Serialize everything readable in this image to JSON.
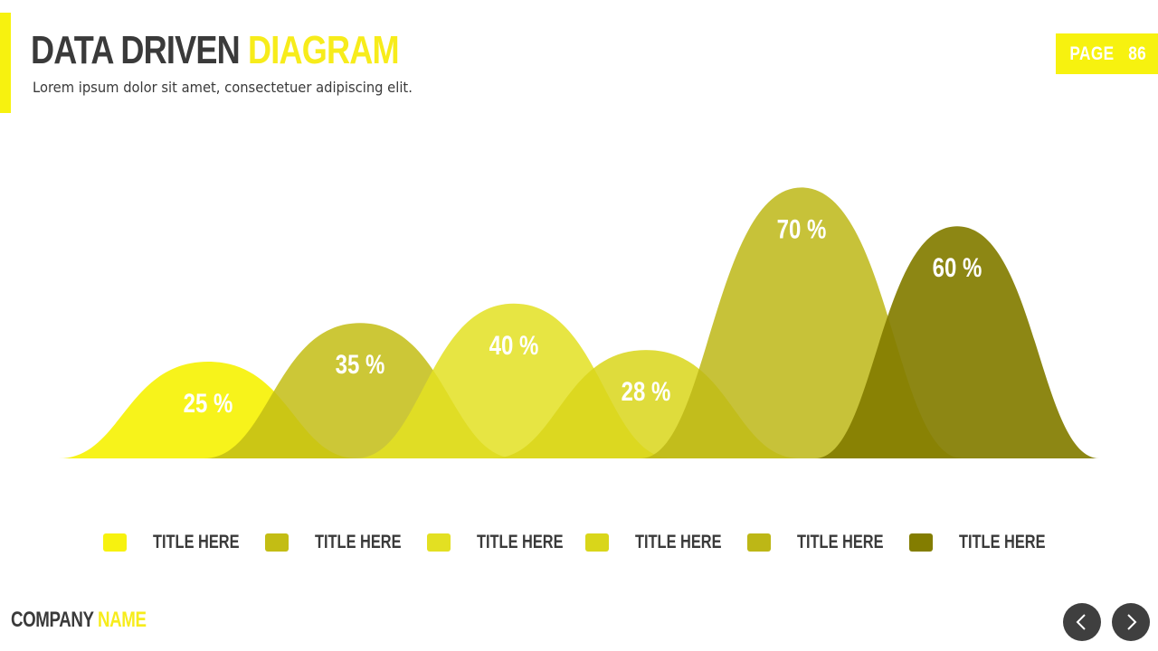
{
  "header": {
    "title_part1": "DATA DRIVEN",
    "title_part2": "DIAGRAM",
    "subtitle": "Lorem ipsum dolor sit amet, consectetuer adipiscing elit.",
    "page_label": "PAGE",
    "page_number": "86"
  },
  "footer": {
    "company_part1": "COMPANY",
    "company_part2": "NAME",
    "prev_icon": "chevron-left-icon",
    "next_icon": "chevron-right-icon"
  },
  "colors": {
    "accent": "#f7f20f",
    "dark_text": "#3a3a3a",
    "nav_button": "#3f3f3f"
  },
  "chart_data": {
    "type": "area",
    "ylim": [
      0,
      100
    ],
    "grid": false,
    "legend": "bottom",
    "series": [
      {
        "label": "TITLE HERE",
        "value": 25,
        "value_label": "25 %",
        "color": "#f7f20f",
        "opacity": 0.95
      },
      {
        "label": "TITLE HERE",
        "value": 35,
        "value_label": "35 %",
        "color": "#c3bd14",
        "opacity": 0.85
      },
      {
        "label": "TITLE HERE",
        "value": 40,
        "value_label": "40 %",
        "color": "#e3e022",
        "opacity": 0.85
      },
      {
        "label": "TITLE HERE",
        "value": 28,
        "value_label": "28 %",
        "color": "#d9d61a",
        "opacity": 0.85
      },
      {
        "label": "TITLE HERE",
        "value": 70,
        "value_label": "70 %",
        "color": "#bdb716",
        "opacity": 0.85
      },
      {
        "label": "TITLE HERE",
        "value": 60,
        "value_label": "60 %",
        "color": "#837d00",
        "opacity": 0.92
      }
    ]
  }
}
